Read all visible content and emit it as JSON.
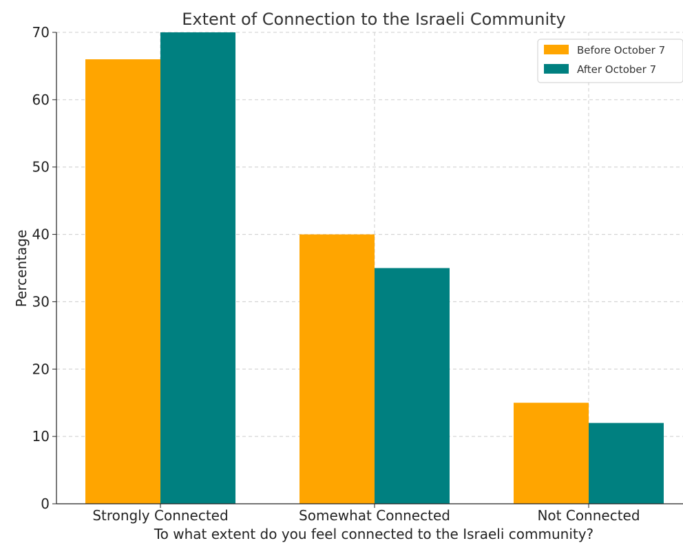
{
  "chart_data": {
    "type": "bar",
    "title": "Extent of Connection to the Israeli Community",
    "xlabel": "To what extent do you feel connected to the Israeli community?",
    "ylabel": "Percentage",
    "categories": [
      "Strongly Connected",
      "Somewhat Connected",
      "Not Connected"
    ],
    "series": [
      {
        "name": "Before October 7",
        "values": [
          66,
          40,
          15
        ],
        "color": "#FFA500"
      },
      {
        "name": "After October 7",
        "values": [
          70,
          35,
          12
        ],
        "color": "#008080"
      }
    ],
    "ylim": [
      0,
      70
    ],
    "yticks": [
      0,
      10,
      20,
      30,
      40,
      50,
      60,
      70
    ],
    "grid": true,
    "legend_position": "top-right"
  }
}
